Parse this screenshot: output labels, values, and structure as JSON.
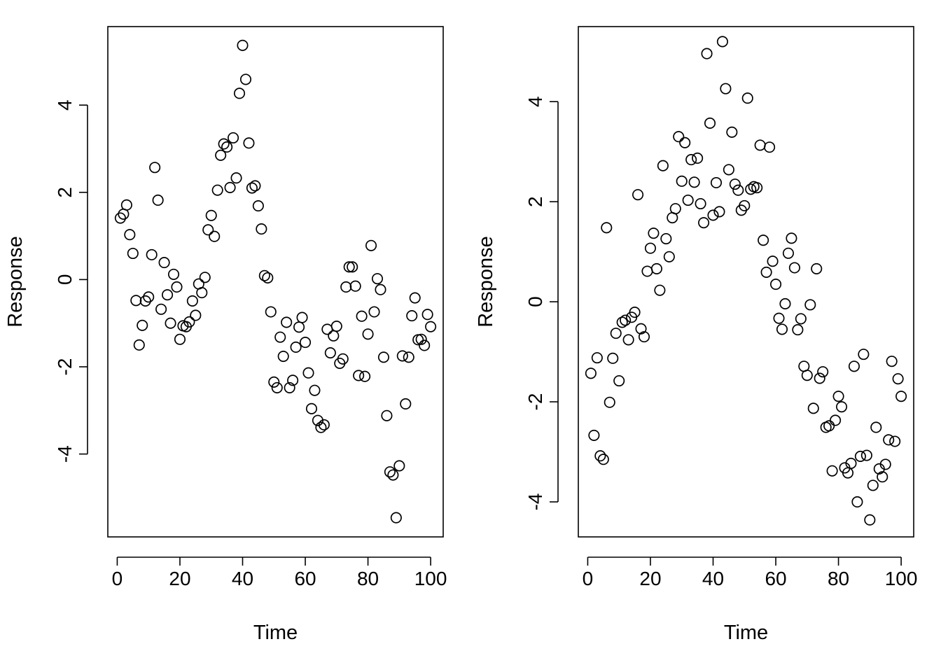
{
  "chart_data": [
    {
      "type": "scatter",
      "title": "",
      "xlabel": "Time",
      "ylabel": "Response",
      "xlim": [
        -3,
        104
      ],
      "ylim": [
        -5.9,
        5.8
      ],
      "xticks": [
        0,
        20,
        40,
        60,
        80,
        100
      ],
      "yticks": [
        -4,
        -2,
        0,
        2,
        4
      ],
      "grid": false,
      "marker": "open-circle",
      "x": [
        1,
        2,
        3,
        4,
        5,
        6,
        7,
        8,
        9,
        10,
        11,
        12,
        13,
        14,
        15,
        16,
        17,
        18,
        19,
        20,
        21,
        22,
        23,
        24,
        25,
        26,
        27,
        28,
        29,
        30,
        31,
        32,
        33,
        34,
        35,
        36,
        37,
        38,
        39,
        40,
        41,
        42,
        43,
        44,
        45,
        46,
        47,
        48,
        49,
        50,
        51,
        52,
        53,
        54,
        55,
        56,
        57,
        58,
        59,
        60,
        61,
        62,
        63,
        64,
        65,
        66,
        67,
        68,
        69,
        70,
        71,
        72,
        73,
        74,
        75,
        76,
        77,
        78,
        79,
        80,
        81,
        82,
        83,
        84,
        85,
        86,
        87,
        88,
        89,
        90,
        91,
        92,
        93,
        94,
        95,
        96,
        97,
        98,
        99,
        100
      ],
      "y": [
        1.41,
        1.5,
        1.71,
        1.03,
        0.6,
        -0.48,
        -1.5,
        -1.05,
        -0.49,
        -0.4,
        0.57,
        2.57,
        1.82,
        -0.68,
        0.39,
        -0.35,
        -1.0,
        0.12,
        -0.17,
        -1.37,
        -1.06,
        -1.08,
        -0.97,
        -0.49,
        -0.82,
        -0.1,
        -0.3,
        0.05,
        1.14,
        1.47,
        0.99,
        2.05,
        2.85,
        3.11,
        3.04,
        2.11,
        3.25,
        2.33,
        4.27,
        5.37,
        4.59,
        3.13,
        2.1,
        2.15,
        1.69,
        1.16,
        0.09,
        0.04,
        -0.74,
        -2.35,
        -2.48,
        -1.32,
        -1.76,
        -0.98,
        -2.48,
        -2.31,
        -1.55,
        -1.09,
        -0.87,
        -1.44,
        -2.14,
        -2.96,
        -2.54,
        -3.23,
        -3.39,
        -3.33,
        -1.14,
        -1.68,
        -1.29,
        -1.07,
        -1.92,
        -1.82,
        -0.17,
        0.29,
        0.29,
        -0.15,
        -2.2,
        -0.84,
        -2.22,
        -1.25,
        0.78,
        -0.74,
        0.02,
        -0.23,
        -1.78,
        -3.12,
        -4.41,
        -4.48,
        -5.46,
        -4.27,
        -1.75,
        -2.85,
        -1.78,
        -0.83,
        -0.42,
        -1.38,
        -1.37,
        -1.51,
        -0.8,
        -1.08
      ]
    },
    {
      "type": "scatter",
      "title": "",
      "xlabel": "Time",
      "ylabel": "Response",
      "xlim": [
        -3,
        104
      ],
      "ylim": [
        -4.7,
        5.5
      ],
      "xticks": [
        0,
        20,
        40,
        60,
        80,
        100
      ],
      "yticks": [
        -4,
        -2,
        0,
        2,
        4
      ],
      "grid": false,
      "marker": "open-circle",
      "x": [
        1,
        2,
        3,
        4,
        5,
        6,
        7,
        8,
        9,
        10,
        11,
        12,
        13,
        14,
        15,
        16,
        17,
        18,
        19,
        20,
        21,
        22,
        23,
        24,
        25,
        26,
        27,
        28,
        29,
        30,
        31,
        32,
        33,
        34,
        35,
        36,
        37,
        38,
        39,
        40,
        41,
        42,
        43,
        44,
        45,
        46,
        47,
        48,
        49,
        50,
        51,
        52,
        53,
        54,
        55,
        56,
        57,
        58,
        59,
        60,
        61,
        62,
        63,
        64,
        65,
        66,
        67,
        68,
        69,
        70,
        71,
        72,
        73,
        74,
        75,
        76,
        77,
        78,
        79,
        80,
        81,
        82,
        83,
        84,
        85,
        86,
        87,
        88,
        89,
        90,
        91,
        92,
        93,
        94,
        95,
        96,
        97,
        98,
        99,
        100
      ],
      "y": [
        -1.43,
        -2.67,
        -1.12,
        -3.08,
        -3.15,
        1.48,
        -2.01,
        -1.13,
        -0.63,
        -1.58,
        -0.41,
        -0.37,
        -0.76,
        -0.31,
        -0.21,
        2.14,
        -0.54,
        -0.7,
        0.61,
        1.07,
        1.37,
        0.66,
        0.23,
        2.72,
        1.26,
        0.9,
        1.68,
        1.86,
        3.3,
        2.41,
        3.18,
        2.03,
        2.84,
        2.39,
        2.87,
        1.96,
        1.58,
        4.96,
        3.57,
        1.73,
        2.38,
        1.8,
        5.2,
        4.26,
        2.64,
        3.39,
        2.35,
        2.23,
        1.83,
        1.92,
        4.07,
        2.25,
        2.3,
        2.28,
        3.13,
        1.23,
        0.59,
        3.09,
        0.81,
        0.35,
        -0.33,
        -0.55,
        -0.04,
        0.97,
        1.27,
        0.68,
        -0.56,
        -0.34,
        -1.29,
        -1.47,
        -0.06,
        -2.13,
        0.66,
        -1.53,
        -1.4,
        -2.51,
        -2.48,
        -3.38,
        -2.37,
        -1.89,
        -2.1,
        -3.32,
        -3.42,
        -3.23,
        -1.29,
        -4.0,
        -3.09,
        -1.05,
        -3.07,
        -4.36,
        -3.67,
        -2.51,
        -3.34,
        -3.5,
        -3.25,
        -2.76,
        -1.19,
        -2.79,
        -1.54,
        -1.89
      ]
    }
  ]
}
